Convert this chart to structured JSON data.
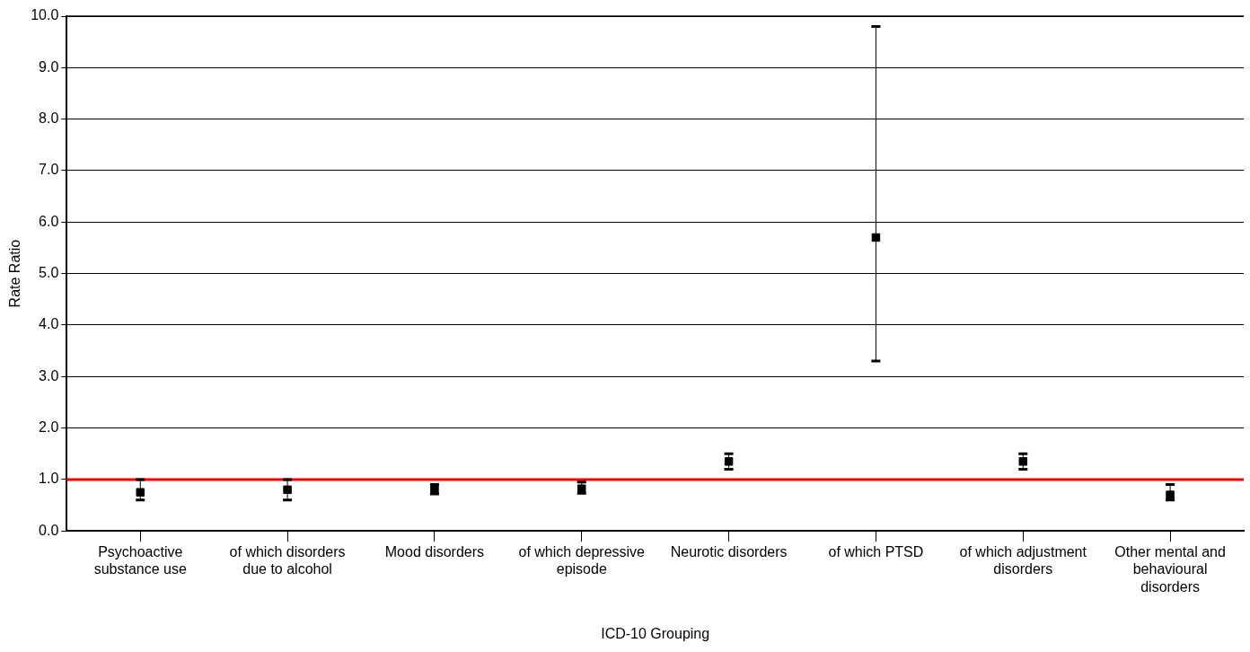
{
  "chart_data": {
    "type": "scatter",
    "xlabel": "ICD-10 Grouping",
    "ylabel": "Rate Ratio",
    "categories": [
      "Psychoactive substance use",
      "of which disorders due to alcohol",
      "Mood disorders",
      "of which depressive episode",
      "Neurotic disorders",
      "of which PTSD",
      "of which adjustment disorders",
      "Other mental and behavioural disorders"
    ],
    "series": [
      {
        "color": "#000000",
        "values": [
          0.75,
          0.8,
          0.8,
          0.82,
          1.35,
          5.7,
          1.35,
          0.7
        ],
        "errors": [
          [
            0.6,
            1.0
          ],
          [
            0.6,
            1.0
          ],
          [
            0.72,
            0.9
          ],
          [
            0.73,
            0.95
          ],
          [
            1.2,
            1.5
          ],
          [
            3.3,
            9.8
          ],
          [
            1.2,
            1.5
          ],
          [
            0.6,
            0.9
          ]
        ]
      }
    ],
    "ylim": [
      0,
      10
    ],
    "yticks": [
      {
        "value": 0,
        "label": "0.0"
      },
      {
        "value": 1,
        "label": "1.0"
      },
      {
        "value": 2,
        "label": "2.0"
      },
      {
        "value": 3,
        "label": "3.0"
      },
      {
        "value": 4,
        "label": "4.0"
      },
      {
        "value": 5,
        "label": "5.0"
      },
      {
        "value": 6,
        "label": "6.0"
      },
      {
        "value": 7,
        "label": "7.0"
      },
      {
        "value": 8,
        "label": "8.0"
      },
      {
        "value": 9,
        "label": "9.0"
      },
      {
        "value": 10,
        "label": "10.0"
      }
    ],
    "ref_lines": [
      {
        "axis": "y",
        "value": 1,
        "color": "#ff0000"
      }
    ],
    "grid": "y",
    "marker": "square",
    "legend": false
  }
}
